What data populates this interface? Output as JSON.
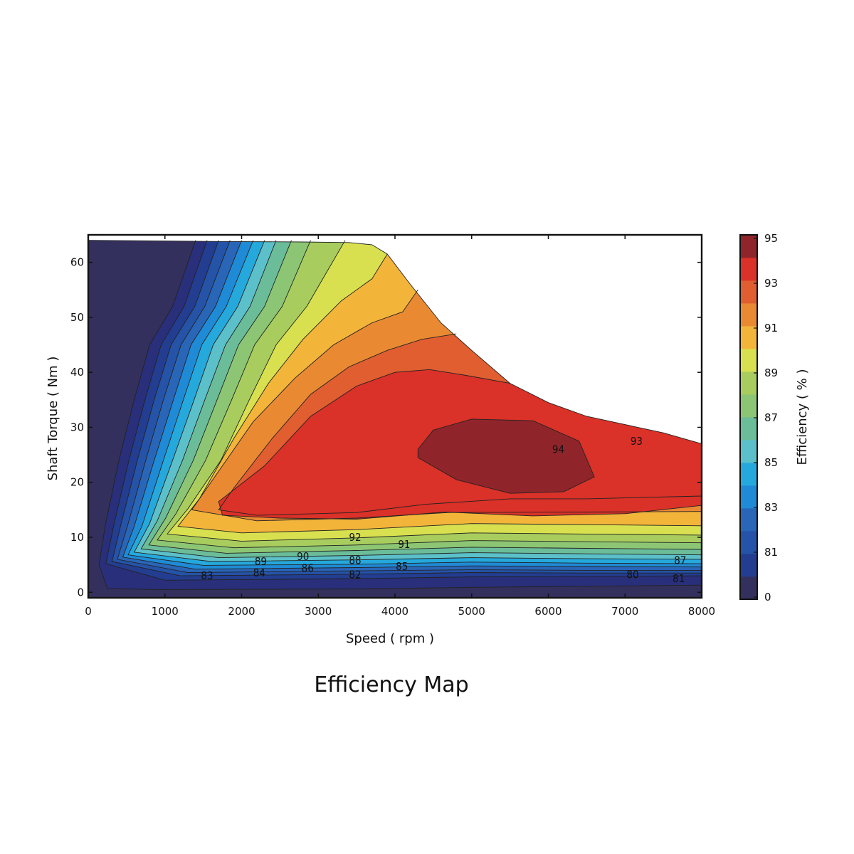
{
  "caption": "Efficiency Map",
  "chart_data": {
    "type": "contour",
    "title": "",
    "xlabel": "Speed ( rpm )",
    "ylabel": "Shaft Torque ( Nm )",
    "colorbar_label": "Efficiency ( % )",
    "xlim": [
      0,
      8000
    ],
    "ylim": [
      -1,
      65
    ],
    "x_ticks": [
      0,
      1000,
      2000,
      3000,
      4000,
      5000,
      6000,
      7000,
      8000
    ],
    "y_ticks": [
      0,
      10,
      20,
      30,
      40,
      50,
      60
    ],
    "colorbar_ticks": [
      95,
      93,
      91,
      89,
      87,
      85,
      83,
      81,
      0
    ],
    "levels": [
      {
        "min": 0,
        "max": 80,
        "color": "#33305d"
      },
      {
        "min": 80,
        "max": 81,
        "color": "#292f7a"
      },
      {
        "min": 81,
        "max": 82,
        "color": "#233d91"
      },
      {
        "min": 82,
        "max": 83,
        "color": "#2553a7"
      },
      {
        "min": 83,
        "max": 84,
        "color": "#2966b8"
      },
      {
        "min": 84,
        "max": 85,
        "color": "#1f8bd6"
      },
      {
        "min": 85,
        "max": 86,
        "color": "#25a9dd"
      },
      {
        "min": 86,
        "max": 87,
        "color": "#5bc0c9"
      },
      {
        "min": 87,
        "max": 88,
        "color": "#6bbd9a"
      },
      {
        "min": 88,
        "max": 89,
        "color": "#8cc674"
      },
      {
        "min": 89,
        "max": 90,
        "color": "#a8cd5e"
      },
      {
        "min": 90,
        "max": 91,
        "color": "#d8e04f"
      },
      {
        "min": 91,
        "max": 92,
        "color": "#f3b43a"
      },
      {
        "min": 92,
        "max": 93,
        "color": "#e98a33"
      },
      {
        "min": 93,
        "max": 94,
        "color": "#e05e30"
      },
      {
        "min": 94,
        "max": 95,
        "color": "#da3128"
      },
      {
        "min": 95,
        "max": 96,
        "color": "#8f252b"
      }
    ],
    "torque_limit": [
      [
        0,
        64
      ],
      [
        1700,
        63.8
      ],
      [
        2800,
        63.7
      ],
      [
        3400,
        63.6
      ],
      [
        3700,
        63.2
      ],
      [
        3900,
        61.5
      ],
      [
        4200,
        56
      ],
      [
        4600,
        49
      ],
      [
        5000,
        44
      ],
      [
        5500,
        38
      ],
      [
        6000,
        34.5
      ],
      [
        6500,
        32
      ],
      [
        7000,
        30.5
      ],
      [
        7500,
        29
      ],
      [
        8000,
        27
      ]
    ],
    "contours": [
      {
        "level": 80,
        "points": [
          [
            1400,
            64
          ],
          [
            1100,
            52
          ],
          [
            800,
            45
          ],
          [
            600,
            35
          ],
          [
            400,
            24
          ],
          [
            220,
            12
          ],
          [
            140,
            5
          ],
          [
            250,
            0.7
          ],
          [
            900,
            0.5
          ],
          [
            3500,
            0.6
          ],
          [
            5000,
            0.9
          ],
          [
            6500,
            1.1
          ],
          [
            8000,
            1.3
          ]
        ]
      },
      {
        "level": 81,
        "points": [
          [
            1550,
            64
          ],
          [
            1250,
            52
          ],
          [
            950,
            45
          ],
          [
            740,
            35
          ],
          [
            530,
            24
          ],
          [
            330,
            12
          ],
          [
            230,
            5.2
          ],
          [
            1000,
            2.2
          ],
          [
            3500,
            2.5
          ],
          [
            5000,
            2.8
          ],
          [
            6500,
            2.9
          ],
          [
            8000,
            3.0
          ]
        ]
      },
      {
        "level": 82,
        "points": [
          [
            1700,
            64
          ],
          [
            1390,
            52
          ],
          [
            1080,
            45
          ],
          [
            860,
            35
          ],
          [
            640,
            24
          ],
          [
            420,
            12
          ],
          [
            310,
            5.6
          ],
          [
            1200,
            3.0
          ],
          [
            3500,
            3.3
          ],
          [
            5000,
            3.6
          ],
          [
            6500,
            3.5
          ],
          [
            8000,
            3.5
          ]
        ]
      },
      {
        "level": 83,
        "points": [
          [
            1850,
            64
          ],
          [
            1520,
            52
          ],
          [
            1210,
            45
          ],
          [
            980,
            35
          ],
          [
            750,
            24
          ],
          [
            510,
            12
          ],
          [
            380,
            6.0
          ],
          [
            1300,
            3.6
          ],
          [
            3500,
            3.9
          ],
          [
            5000,
            4.1
          ],
          [
            6500,
            4.0
          ],
          [
            8000,
            4.0
          ]
        ]
      },
      {
        "level": 84,
        "points": [
          [
            2000,
            64
          ],
          [
            1660,
            52
          ],
          [
            1340,
            45
          ],
          [
            1110,
            35
          ],
          [
            860,
            24
          ],
          [
            600,
            12
          ],
          [
            450,
            6.4
          ],
          [
            1400,
            4.2
          ],
          [
            3500,
            4.5
          ],
          [
            5000,
            4.8
          ],
          [
            6500,
            4.7
          ],
          [
            8000,
            4.6
          ]
        ]
      },
      {
        "level": 85,
        "points": [
          [
            2150,
            64
          ],
          [
            1800,
            52
          ],
          [
            1480,
            45
          ],
          [
            1240,
            35
          ],
          [
            980,
            24
          ],
          [
            700,
            12
          ],
          [
            520,
            6.8
          ],
          [
            1500,
            4.9
          ],
          [
            3500,
            5.1
          ],
          [
            5000,
            5.5
          ],
          [
            6500,
            5.3
          ],
          [
            8000,
            5.2
          ]
        ]
      },
      {
        "level": 86,
        "points": [
          [
            2300,
            64
          ],
          [
            1950,
            52
          ],
          [
            1630,
            45
          ],
          [
            1380,
            35
          ],
          [
            1100,
            24
          ],
          [
            800,
            12.5
          ],
          [
            600,
            7.3
          ],
          [
            1600,
            5.6
          ],
          [
            3500,
            5.9
          ],
          [
            5000,
            6.3
          ],
          [
            6500,
            6.1
          ],
          [
            8000,
            6.0
          ]
        ]
      },
      {
        "level": 87,
        "points": [
          [
            2450,
            64
          ],
          [
            2110,
            52
          ],
          [
            1790,
            45
          ],
          [
            1520,
            35
          ],
          [
            1230,
            24
          ],
          [
            900,
            13
          ],
          [
            690,
            7.9
          ],
          [
            1700,
            6.3
          ],
          [
            3500,
            6.7
          ],
          [
            5000,
            7.2
          ],
          [
            6500,
            7.0
          ],
          [
            8000,
            6.8
          ]
        ]
      },
      {
        "level": 88,
        "points": [
          [
            2650,
            64
          ],
          [
            2300,
            52
          ],
          [
            1960,
            45
          ],
          [
            1680,
            35
          ],
          [
            1370,
            24
          ],
          [
            1010,
            13.5
          ],
          [
            790,
            8.6
          ],
          [
            1800,
            7.1
          ],
          [
            3500,
            7.6
          ],
          [
            5000,
            8.2
          ],
          [
            6500,
            8.0
          ],
          [
            8000,
            7.8
          ]
        ]
      },
      {
        "level": 89,
        "points": [
          [
            2900,
            64
          ],
          [
            2530,
            52
          ],
          [
            2170,
            45
          ],
          [
            1870,
            35
          ],
          [
            1530,
            24
          ],
          [
            1140,
            14.2
          ],
          [
            900,
            9.5
          ],
          [
            1900,
            8.1
          ],
          [
            3500,
            8.6
          ],
          [
            5000,
            9.4
          ],
          [
            6500,
            9.2
          ],
          [
            8000,
            9.0
          ]
        ]
      },
      {
        "level": 90,
        "points": [
          [
            3350,
            64
          ],
          [
            2850,
            52
          ],
          [
            2450,
            45
          ],
          [
            2100,
            35
          ],
          [
            1730,
            24
          ],
          [
            1300,
            15.2
          ],
          [
            1030,
            10.6
          ],
          [
            2000,
            9.3
          ],
          [
            3500,
            9.9
          ],
          [
            5000,
            10.8
          ],
          [
            6500,
            10.6
          ],
          [
            8000,
            10.4
          ]
        ]
      },
      {
        "level": 91,
        "points": [
          [
            3900,
            61.5
          ],
          [
            3700,
            57
          ],
          [
            3300,
            53
          ],
          [
            2800,
            46
          ],
          [
            2350,
            38
          ],
          [
            1900,
            28
          ],
          [
            1450,
            17
          ],
          [
            1170,
            12
          ],
          [
            2000,
            10.8
          ],
          [
            3500,
            11.4
          ],
          [
            5000,
            12.5
          ],
          [
            6500,
            12.3
          ],
          [
            8000,
            12.1
          ]
        ]
      },
      {
        "level": 92,
        "points": [
          [
            4300,
            55
          ],
          [
            4100,
            51
          ],
          [
            3700,
            49
          ],
          [
            3200,
            45
          ],
          [
            2700,
            39
          ],
          [
            2150,
            31
          ],
          [
            1650,
            21
          ],
          [
            1350,
            15
          ],
          [
            2200,
            13
          ],
          [
            3500,
            13.5
          ],
          [
            4700,
            14.5
          ],
          [
            6500,
            14.6
          ],
          [
            8000,
            14.7
          ]
        ]
      },
      {
        "level": 93,
        "points": [
          [
            4800,
            47
          ],
          [
            4350,
            46
          ],
          [
            3900,
            44
          ],
          [
            3400,
            41
          ],
          [
            2900,
            36
          ],
          [
            2400,
            28
          ],
          [
            1900,
            19
          ],
          [
            1700,
            15
          ],
          [
            2200,
            14
          ],
          [
            3500,
            14.5
          ],
          [
            4400,
            16
          ],
          [
            5500,
            17
          ],
          [
            6500,
            17
          ],
          [
            8000,
            17.5
          ]
        ]
      },
      {
        "level": 94,
        "points": [
          [
            5500,
            38
          ],
          [
            4900,
            39.5
          ],
          [
            4450,
            40.5
          ],
          [
            4000,
            40
          ],
          [
            3500,
            37.5
          ],
          [
            2900,
            32
          ],
          [
            2300,
            23
          ],
          [
            1700,
            16.5
          ],
          [
            1750,
            14
          ],
          [
            2500,
            13.5
          ],
          [
            3500,
            13.3
          ],
          [
            4650,
            14.6
          ],
          [
            5800,
            13.9
          ],
          [
            7000,
            14.3
          ],
          [
            8000,
            15.8
          ]
        ]
      },
      {
        "level": 95,
        "points": [
          [
            4300,
            26
          ],
          [
            4500,
            29.5
          ],
          [
            5000,
            31.5
          ],
          [
            5800,
            31.2
          ],
          [
            6400,
            27.5
          ],
          [
            6600,
            21
          ],
          [
            6200,
            18.3
          ],
          [
            5500,
            18
          ],
          [
            4800,
            20.5
          ],
          [
            4300,
            24.5
          ],
          [
            4300,
            26
          ]
        ]
      }
    ],
    "contour_labels": [
      {
        "text": "94",
        "x": 6130,
        "y": 26
      },
      {
        "text": "93",
        "x": 7150,
        "y": 27.5
      },
      {
        "text": "92",
        "x": 3480,
        "y": 10
      },
      {
        "text": "91",
        "x": 4120,
        "y": 8.7
      },
      {
        "text": "90",
        "x": 2800,
        "y": 6.5
      },
      {
        "text": "89",
        "x": 2250,
        "y": 5.6
      },
      {
        "text": "88",
        "x": 3480,
        "y": 5.8
      },
      {
        "text": "87",
        "x": 7720,
        "y": 5.8
      },
      {
        "text": "86",
        "x": 2860,
        "y": 4.4
      },
      {
        "text": "85",
        "x": 4090,
        "y": 4.7
      },
      {
        "text": "84",
        "x": 2230,
        "y": 3.5
      },
      {
        "text": "83",
        "x": 1550,
        "y": 3
      },
      {
        "text": "82",
        "x": 3480,
        "y": 3.2
      },
      {
        "text": "80",
        "x": 7100,
        "y": 3.2
      },
      {
        "text": "81",
        "x": 7700,
        "y": 2.5
      }
    ]
  }
}
